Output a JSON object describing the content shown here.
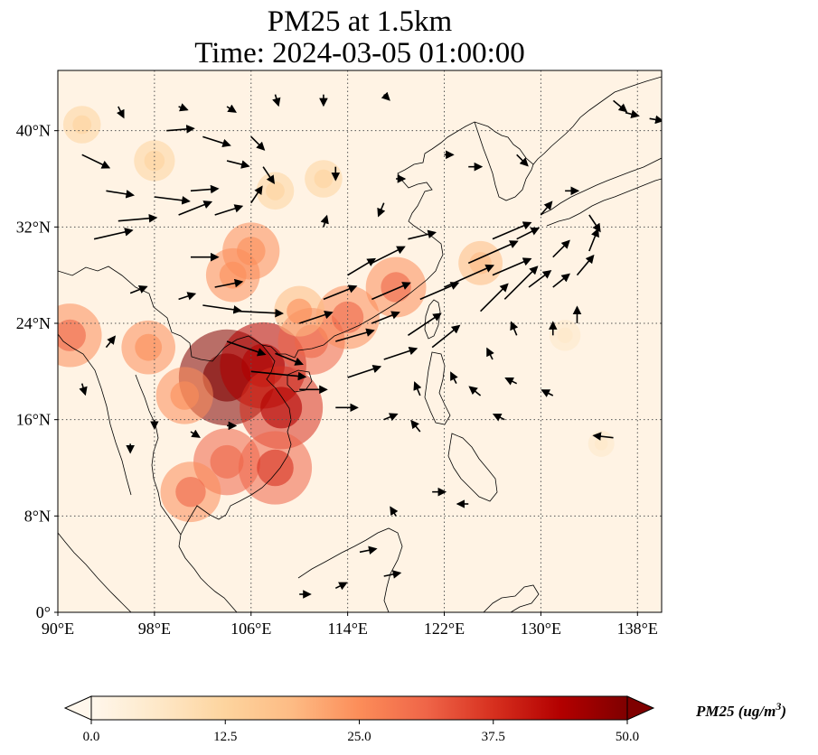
{
  "title": {
    "line1": "PM25 at 1.5km",
    "line2": "Time: 2024-03-05 01:00:00"
  },
  "map": {
    "projection": "PlateCarree",
    "lon_range": [
      90,
      140
    ],
    "lat_range": [
      0,
      45
    ],
    "xticks": [
      {
        "value": 90,
        "label": "90°E"
      },
      {
        "value": 98,
        "label": "98°E"
      },
      {
        "value": 106,
        "label": "106°E"
      },
      {
        "value": 114,
        "label": "114°E"
      },
      {
        "value": 122,
        "label": "122°E"
      },
      {
        "value": 130,
        "label": "130°E"
      },
      {
        "value": 138,
        "label": "138°E"
      }
    ],
    "yticks": [
      {
        "value": 0,
        "label": "0°"
      },
      {
        "value": 8,
        "label": "8°N"
      },
      {
        "value": 16,
        "label": "16°N"
      },
      {
        "value": 24,
        "label": "24°N"
      },
      {
        "value": 32,
        "label": "32°N"
      },
      {
        "value": 40,
        "label": "40°N"
      }
    ],
    "gridlines": true,
    "pm25_hotspots": [
      {
        "lon": 104,
        "lat": 19.5,
        "value": 48
      },
      {
        "lon": 107,
        "lat": 20.5,
        "value": 42
      },
      {
        "lon": 108.5,
        "lat": 17,
        "value": 40
      },
      {
        "lon": 104,
        "lat": 12.5,
        "value": 30
      },
      {
        "lon": 108,
        "lat": 12,
        "value": 34
      },
      {
        "lon": 101,
        "lat": 10,
        "value": 26
      },
      {
        "lon": 111,
        "lat": 22.5,
        "value": 30
      },
      {
        "lon": 114,
        "lat": 24.5,
        "value": 28
      },
      {
        "lon": 118,
        "lat": 27,
        "value": 26
      },
      {
        "lon": 106,
        "lat": 30,
        "value": 24
      },
      {
        "lon": 104.5,
        "lat": 28,
        "value": 22
      },
      {
        "lon": 97.5,
        "lat": 22,
        "value": 22
      },
      {
        "lon": 91,
        "lat": 23,
        "value": 28
      },
      {
        "lon": 110,
        "lat": 25,
        "value": 20
      },
      {
        "lon": 100.5,
        "lat": 18,
        "value": 24
      },
      {
        "lon": 108,
        "lat": 35,
        "value": 12
      },
      {
        "lon": 112,
        "lat": 36,
        "value": 12
      },
      {
        "lon": 98,
        "lat": 37.5,
        "value": 14
      },
      {
        "lon": 92,
        "lat": 40.5,
        "value": 12
      },
      {
        "lon": 125,
        "lat": 29,
        "value": 16
      },
      {
        "lon": 132,
        "lat": 23,
        "value": 8
      },
      {
        "lon": 135,
        "lat": 14,
        "value": 5
      }
    ],
    "wind_vectors": [
      {
        "lon": 92,
        "lat": 38,
        "u": 2.5,
        "v": -1.2
      },
      {
        "lon": 94,
        "lat": 35,
        "u": 2.5,
        "v": -0.4
      },
      {
        "lon": 98,
        "lat": 34.5,
        "u": 3.2,
        "v": -0.4
      },
      {
        "lon": 101,
        "lat": 35,
        "u": 2.5,
        "v": 0.2
      },
      {
        "lon": 95,
        "lat": 32.5,
        "u": 3.5,
        "v": 0.3
      },
      {
        "lon": 93,
        "lat": 31,
        "u": 3.5,
        "v": 0.8
      },
      {
        "lon": 100,
        "lat": 33,
        "u": 3.0,
        "v": 1.2
      },
      {
        "lon": 103,
        "lat": 33,
        "u": 2.5,
        "v": 0.8
      },
      {
        "lon": 106,
        "lat": 34,
        "u": 1.0,
        "v": 1.5
      },
      {
        "lon": 99,
        "lat": 40,
        "u": 2.5,
        "v": 0.2
      },
      {
        "lon": 102,
        "lat": 39.5,
        "u": 2.5,
        "v": -0.8
      },
      {
        "lon": 106,
        "lat": 39.5,
        "u": 1.2,
        "v": -1.2
      },
      {
        "lon": 104,
        "lat": 37.5,
        "u": 2.0,
        "v": -0.5
      },
      {
        "lon": 107,
        "lat": 37,
        "u": 1.0,
        "v": -1.5
      },
      {
        "lon": 101,
        "lat": 29.5,
        "u": 2.5,
        "v": 0.0
      },
      {
        "lon": 103,
        "lat": 27,
        "u": 2.5,
        "v": 0.5
      },
      {
        "lon": 102,
        "lat": 25.5,
        "u": 3.5,
        "v": -0.5
      },
      {
        "lon": 105,
        "lat": 25,
        "u": 4.0,
        "v": -0.2
      },
      {
        "lon": 104,
        "lat": 22.5,
        "u": 3.5,
        "v": -1.2
      },
      {
        "lon": 108,
        "lat": 21.5,
        "u": 2.5,
        "v": -1.0
      },
      {
        "lon": 106,
        "lat": 20,
        "u": 5.0,
        "v": -0.5
      },
      {
        "lon": 110,
        "lat": 18.5,
        "u": 2.5,
        "v": 0.0
      },
      {
        "lon": 110,
        "lat": 24,
        "u": 3.0,
        "v": 1.0
      },
      {
        "lon": 112,
        "lat": 26,
        "u": 3.0,
        "v": 1.2
      },
      {
        "lon": 114,
        "lat": 28,
        "u": 2.5,
        "v": 1.5
      },
      {
        "lon": 116,
        "lat": 29,
        "u": 3.0,
        "v": 1.5
      },
      {
        "lon": 116,
        "lat": 26,
        "u": 3.5,
        "v": 1.5
      },
      {
        "lon": 113,
        "lat": 22.5,
        "u": 3.5,
        "v": 1.0
      },
      {
        "lon": 117,
        "lat": 21,
        "u": 3.0,
        "v": 1.0
      },
      {
        "lon": 114,
        "lat": 19.5,
        "u": 3.0,
        "v": 1.0
      },
      {
        "lon": 116,
        "lat": 24,
        "u": 2.5,
        "v": 1.0
      },
      {
        "lon": 120,
        "lat": 26,
        "u": 3.5,
        "v": 1.5
      },
      {
        "lon": 122,
        "lat": 27,
        "u": 4.5,
        "v": 2.0
      },
      {
        "lon": 124,
        "lat": 29,
        "u": 4.5,
        "v": 2.0
      },
      {
        "lon": 126,
        "lat": 28,
        "u": 3.5,
        "v": 1.5
      },
      {
        "lon": 119,
        "lat": 23,
        "u": 3.0,
        "v": 2.0
      },
      {
        "lon": 121,
        "lat": 22,
        "u": 2.5,
        "v": 2.0
      },
      {
        "lon": 125,
        "lat": 25,
        "u": 2.5,
        "v": 2.5
      },
      {
        "lon": 127,
        "lat": 26,
        "u": 3.0,
        "v": 3.0
      },
      {
        "lon": 129,
        "lat": 27,
        "u": 2.0,
        "v": 1.5
      },
      {
        "lon": 131,
        "lat": 27,
        "u": 1.5,
        "v": 1.2
      },
      {
        "lon": 133,
        "lat": 28,
        "u": 1.5,
        "v": 1.8
      },
      {
        "lon": 134,
        "lat": 30,
        "u": 0.8,
        "v": 2.0
      },
      {
        "lon": 131,
        "lat": 29.5,
        "u": 1.5,
        "v": 1.5
      },
      {
        "lon": 128,
        "lat": 31,
        "u": 2.0,
        "v": 1.0
      },
      {
        "lon": 126,
        "lat": 31,
        "u": 3.5,
        "v": 1.5
      },
      {
        "lon": 119,
        "lat": 31,
        "u": 2.5,
        "v": 0.6
      },
      {
        "lon": 130,
        "lat": 33,
        "u": 1.0,
        "v": 1.2
      },
      {
        "lon": 132,
        "lat": 35,
        "u": 1.2,
        "v": 0.0
      },
      {
        "lon": 134,
        "lat": 33,
        "u": 1.0,
        "v": -1.5
      },
      {
        "lon": 133,
        "lat": 24,
        "u": 0.0,
        "v": 1.5
      },
      {
        "lon": 131,
        "lat": 23,
        "u": 0.0,
        "v": 1.2
      },
      {
        "lon": 128,
        "lat": 23,
        "u": -0.5,
        "v": 1.2
      },
      {
        "lon": 126,
        "lat": 21,
        "u": -0.5,
        "v": 1.0
      },
      {
        "lon": 123,
        "lat": 19,
        "u": -0.5,
        "v": 1.0
      },
      {
        "lon": 120,
        "lat": 18,
        "u": -0.5,
        "v": 1.2
      },
      {
        "lon": 125,
        "lat": 18,
        "u": -1.0,
        "v": 0.8
      },
      {
        "lon": 128,
        "lat": 19,
        "u": -1.0,
        "v": 0.5
      },
      {
        "lon": 131,
        "lat": 18,
        "u": -1.0,
        "v": 0.5
      },
      {
        "lon": 127,
        "lat": 16,
        "u": -1.0,
        "v": 0.5
      },
      {
        "lon": 136,
        "lat": 14.5,
        "u": -1.8,
        "v": 0.2
      },
      {
        "lon": 113,
        "lat": 17,
        "u": 2.0,
        "v": 0.0
      },
      {
        "lon": 117,
        "lat": 16,
        "u": 1.2,
        "v": 0.5
      },
      {
        "lon": 120,
        "lat": 15,
        "u": -0.8,
        "v": 1.0
      },
      {
        "lon": 121,
        "lat": 10,
        "u": 1.2,
        "v": 0.0
      },
      {
        "lon": 124,
        "lat": 9,
        "u": -1.0,
        "v": 0.0
      },
      {
        "lon": 118,
        "lat": 8,
        "u": -0.5,
        "v": 0.8
      },
      {
        "lon": 115,
        "lat": 5,
        "u": 1.5,
        "v": 0.3
      },
      {
        "lon": 117,
        "lat": 3,
        "u": 1.5,
        "v": 0.3
      },
      {
        "lon": 113,
        "lat": 2,
        "u": 1.0,
        "v": 0.5
      },
      {
        "lon": 110,
        "lat": 1.5,
        "u": 1.0,
        "v": 0.0
      },
      {
        "lon": 98,
        "lat": 16,
        "u": 0.0,
        "v": -0.8
      },
      {
        "lon": 96,
        "lat": 14,
        "u": 0.0,
        "v": -0.8
      },
      {
        "lon": 101,
        "lat": 15,
        "u": 0.8,
        "v": -0.5
      },
      {
        "lon": 104,
        "lat": 15.5,
        "u": 0.8,
        "v": 0.0
      },
      {
        "lon": 92,
        "lat": 19,
        "u": 0.3,
        "v": -1.0
      },
      {
        "lon": 94,
        "lat": 22,
        "u": 0.8,
        "v": 1.0
      },
      {
        "lon": 96,
        "lat": 26.5,
        "u": 1.5,
        "v": 0.6
      },
      {
        "lon": 100,
        "lat": 26,
        "u": 1.5,
        "v": 0.5
      },
      {
        "lon": 113,
        "lat": 37,
        "u": 0.0,
        "v": -1.2
      },
      {
        "lon": 117,
        "lat": 34,
        "u": -0.5,
        "v": -1.2
      },
      {
        "lon": 112,
        "lat": 32,
        "u": 0.3,
        "v": 1.0
      },
      {
        "lon": 118,
        "lat": 36,
        "u": 0.8,
        "v": 0.0
      },
      {
        "lon": 122,
        "lat": 38,
        "u": 0.8,
        "v": 0.0
      },
      {
        "lon": 124,
        "lat": 37,
        "u": 1.2,
        "v": 0.0
      },
      {
        "lon": 128,
        "lat": 38,
        "u": 1.0,
        "v": -1.0
      },
      {
        "lon": 136,
        "lat": 42.5,
        "u": 1.2,
        "v": -1.0
      },
      {
        "lon": 137,
        "lat": 41.5,
        "u": 1.2,
        "v": -0.3
      },
      {
        "lon": 139,
        "lat": 41,
        "u": 1.2,
        "v": -0.2
      },
      {
        "lon": 95,
        "lat": 42,
        "u": 0.5,
        "v": -1.0
      },
      {
        "lon": 100,
        "lat": 42,
        "u": 0.8,
        "v": -0.3
      },
      {
        "lon": 104,
        "lat": 42,
        "u": 0.8,
        "v": -0.5
      },
      {
        "lon": 108,
        "lat": 43,
        "u": 0.3,
        "v": -1.0
      },
      {
        "lon": 112,
        "lat": 43,
        "u": 0.0,
        "v": -1.0
      },
      {
        "lon": 117,
        "lat": 43,
        "u": 0.5,
        "v": -0.5
      }
    ]
  },
  "colorbar": {
    "cmap": "OrRd",
    "colors": [
      "#fff7ec",
      "#fee8c8",
      "#fdd49e",
      "#fdbb84",
      "#fc8d59",
      "#ef6548",
      "#d7301f",
      "#b30000",
      "#7f0000"
    ],
    "min": 0.0,
    "max": 50.0,
    "extend": "both",
    "ticks": [
      "0.0",
      "12.5",
      "25.0",
      "37.5",
      "50.0"
    ],
    "label": "PM25 (ug/m",
    "label_sup": "3",
    "label_close": ")"
  }
}
